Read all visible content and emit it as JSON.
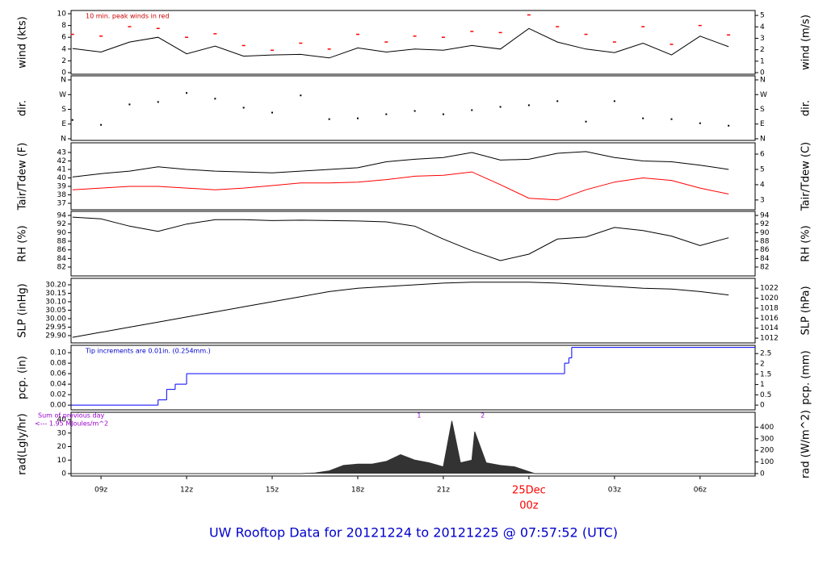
{
  "title": "UW Rooftop Data for 20121224  to  20121225 @ 07:57:52  (UTC)",
  "chart_data": [
    {
      "type": "line",
      "ylabel": "wind (kts)",
      "y2label": "wind (m/s)",
      "annotation": "10 min. peak winds in red",
      "annotation_color": "#cc0000",
      "xlim": [
        7.95,
        31.93
      ],
      "ylim": [
        -0.27,
        10.55
      ],
      "yticks": [
        0,
        2,
        4,
        6,
        8,
        10
      ],
      "y2lim": [
        -0.14,
        5.43
      ],
      "y2ticks": [
        0,
        1,
        2,
        3,
        4,
        5
      ],
      "x": [
        8,
        9,
        10,
        11,
        12,
        13,
        14,
        15,
        16,
        17,
        18,
        19,
        20,
        21,
        22,
        23,
        24,
        25,
        26,
        27,
        28,
        29,
        30,
        31
      ],
      "series": [
        {
          "name": "wind",
          "color": "#000000",
          "values": [
            4.1,
            3.5,
            5.2,
            6.0,
            3.2,
            4.5,
            2.8,
            3.0,
            3.1,
            2.5,
            4.2,
            3.5,
            4.0,
            3.8,
            4.6,
            4.0,
            7.5,
            5.2,
            4.0,
            3.4,
            5.0,
            3.0,
            6.2,
            4.4
          ]
        },
        {
          "name": "peak",
          "color": "#ff0000",
          "style": "dash",
          "values": [
            6.5,
            6.2,
            7.8,
            7.5,
            6.0,
            6.6,
            4.6,
            3.8,
            5.0,
            4.0,
            6.5,
            5.2,
            6.2,
            6.0,
            7.0,
            6.8,
            9.8,
            7.8,
            6.5,
            5.2,
            7.8,
            4.8,
            8.0,
            6.4
          ]
        }
      ]
    },
    {
      "type": "scatter",
      "ylabel": "dir.",
      "y2label": "dir.",
      "xlim": [
        7.95,
        31.93
      ],
      "ylim": [
        -9.9,
        384.7
      ],
      "yticks": [
        {
          "value": 0,
          "label": "N"
        },
        {
          "value": 90,
          "label": "E"
        },
        {
          "value": 180,
          "label": "S"
        },
        {
          "value": 270,
          "label": "W"
        },
        {
          "value": 360,
          "label": "N"
        }
      ],
      "y2lim": [
        -9.9,
        384.7
      ],
      "y2ticks": [
        {
          "value": 0,
          "label": "N"
        },
        {
          "value": 90,
          "label": "E"
        },
        {
          "value": 180,
          "label": "S"
        },
        {
          "value": 270,
          "label": "W"
        },
        {
          "value": 360,
          "label": "N"
        }
      ],
      "x": [
        8,
        9,
        10,
        11,
        12,
        13,
        14,
        15,
        16,
        17,
        18,
        19,
        20,
        21,
        22,
        23,
        24,
        25,
        26,
        27,
        28,
        29,
        30,
        31
      ],
      "series": [
        {
          "name": "dir",
          "color": "#000000",
          "values": [
            115,
            85,
            210,
            225,
            280,
            245,
            190,
            160,
            265,
            120,
            125,
            150,
            170,
            150,
            175,
            195,
            205,
            230,
            105,
            230,
            125,
            120,
            95,
            80
          ]
        }
      ]
    },
    {
      "type": "line",
      "ylabel": "Tair/Tdew (F)",
      "y2label": "Tair/Tdew (C)",
      "xlim": [
        7.95,
        31.93
      ],
      "ylim": [
        36.24,
        44.14
      ],
      "yticks": [
        37,
        38,
        39,
        40,
        41,
        42,
        43
      ],
      "y2lim": [
        2.36,
        6.74
      ],
      "y2ticks": [
        3,
        4,
        5,
        6
      ],
      "x": [
        8,
        9,
        10,
        11,
        12,
        13,
        14,
        15,
        16,
        17,
        18,
        19,
        20,
        21,
        22,
        23,
        24,
        25,
        26,
        27,
        28,
        29,
        30,
        31
      ],
      "series": [
        {
          "name": "Tair",
          "color": "#000000",
          "values": [
            40.1,
            40.5,
            40.8,
            41.3,
            41.0,
            40.8,
            40.7,
            40.6,
            40.8,
            41.0,
            41.2,
            41.9,
            42.2,
            42.4,
            43.0,
            42.1,
            42.2,
            42.9,
            43.1,
            42.4,
            42.0,
            41.9,
            41.5,
            41.0
          ]
        },
        {
          "name": "Tdew",
          "color": "#ff0000",
          "values": [
            38.6,
            38.8,
            39.0,
            39.0,
            38.8,
            38.6,
            38.8,
            39.1,
            39.4,
            39.4,
            39.5,
            39.8,
            40.2,
            40.3,
            40.7,
            39.2,
            37.6,
            37.4,
            38.6,
            39.5,
            40.0,
            39.7,
            38.8,
            38.1
          ]
        }
      ]
    },
    {
      "type": "line",
      "ylabel": "RH (%)",
      "y2label": "RH (%)",
      "xlim": [
        7.95,
        31.93
      ],
      "ylim": [
        79.94,
        94.94
      ],
      "yticks": [
        82,
        84,
        86,
        88,
        90,
        92,
        94
      ],
      "y2lim": [
        79.94,
        94.94
      ],
      "y2ticks": [
        82,
        84,
        86,
        88,
        90,
        92,
        94
      ],
      "x": [
        8,
        9,
        10,
        11,
        12,
        13,
        14,
        15,
        16,
        17,
        18,
        19,
        20,
        21,
        22,
        23,
        24,
        25,
        26,
        27,
        28,
        29,
        30,
        31
      ],
      "series": [
        {
          "name": "RH",
          "color": "#000000",
          "values": [
            93.6,
            93.2,
            91.5,
            90.3,
            92.0,
            93.0,
            93.0,
            92.8,
            92.9,
            92.8,
            92.7,
            92.5,
            91.5,
            88.5,
            85.8,
            83.5,
            85.0,
            88.5,
            89.0,
            91.2,
            90.5,
            89.2,
            87.0,
            88.8
          ]
        }
      ]
    },
    {
      "type": "line",
      "ylabel": "SLP (inHg)",
      "y2label": "SLP (hPa)",
      "xlim": [
        7.95,
        31.93
      ],
      "ylim": [
        29.857,
        30.238
      ],
      "yticks": [
        {
          "value": 29.9,
          "label": "29.90"
        },
        29.95,
        {
          "value": 30,
          "label": "30.00"
        },
        30.05,
        {
          "value": 30.1,
          "label": "30.10"
        },
        30.15,
        {
          "value": 30.2,
          "label": "30.20"
        }
      ],
      "y2lim": [
        1011.05,
        1023.96
      ],
      "y2ticks": [
        1012,
        1014,
        1016,
        1018,
        1020,
        1022
      ],
      "x": [
        8,
        9,
        10,
        11,
        12,
        13,
        14,
        15,
        16,
        17,
        18,
        19,
        20,
        21,
        22,
        23,
        24,
        25,
        26,
        27,
        28,
        29,
        30,
        31
      ],
      "series": [
        {
          "name": "SLP",
          "color": "#000000",
          "values": [
            29.89,
            29.92,
            29.95,
            29.98,
            30.01,
            30.04,
            30.07,
            30.1,
            30.13,
            30.16,
            30.18,
            30.19,
            30.2,
            30.21,
            30.215,
            30.215,
            30.215,
            30.21,
            30.2,
            30.19,
            30.18,
            30.175,
            30.16,
            30.14
          ]
        }
      ]
    },
    {
      "type": "step",
      "ylabel": "pcp. (in)",
      "y2label": "pcp. (mm)",
      "annotation": "Tip increments are 0.01in. (0.254mm.)",
      "annotation_color": "#0000cc",
      "xlim": [
        7.95,
        31.93
      ],
      "ylim": [
        -0.009,
        0.114
      ],
      "yticks": [
        {
          "value": 0,
          "label": "0.00"
        },
        {
          "value": 0.02,
          "label": "0.02"
        },
        {
          "value": 0.04,
          "label": "0.04"
        },
        {
          "value": 0.06,
          "label": "0.06"
        },
        {
          "value": 0.08,
          "label": "0.08"
        },
        {
          "value": 0.1,
          "label": "0.10"
        }
      ],
      "y2lim": [
        -0.23,
        2.9
      ],
      "y2ticks": [
        0,
        0.5,
        1,
        1.5,
        2,
        2.5
      ],
      "x": [
        7.95,
        11.0,
        11.3,
        11.6,
        12.0,
        25.25,
        25.4,
        25.5,
        31.93
      ],
      "series": [
        {
          "name": "pcp",
          "color": "#0000ff",
          "values": [
            0,
            0.01,
            0.03,
            0.04,
            0.06,
            0.08,
            0.09,
            0.11,
            0.11
          ]
        }
      ]
    },
    {
      "type": "area",
      "ylabel": "rad(Lgly/hr)",
      "y2label": "rad (W/m^2)",
      "annotations": [
        "Sum of previous day",
        "<--- 1.95 MJoules/m^2"
      ],
      "annotation_color": "#9900cc",
      "markers": [
        {
          "x": 20.15,
          "label": "1"
        },
        {
          "x": 22.38,
          "label": "2"
        }
      ],
      "xlim": [
        7.95,
        31.93
      ],
      "ylim": [
        -1.8,
        45.4
      ],
      "yticks": [
        0,
        10,
        20,
        30,
        40
      ],
      "y2lim": [
        -21,
        528
      ],
      "y2ticks": [
        0,
        100,
        200,
        300,
        400
      ],
      "xticks": [
        {
          "value": 9,
          "label": "09z"
        },
        {
          "value": 12,
          "label": "12z"
        },
        {
          "value": 15,
          "label": "15z"
        },
        {
          "value": 18,
          "label": "18z"
        },
        {
          "value": 21,
          "label": "21z"
        },
        {
          "value": 24,
          "label": "00z",
          "color": "#ff0000"
        },
        {
          "value": 27,
          "label": "03z"
        },
        {
          "value": 30,
          "label": "06z"
        }
      ],
      "date_tick": {
        "value": 24,
        "label": "25Dec",
        "color": "#ff0000"
      },
      "x": [
        7.95,
        16,
        16.5,
        17,
        17.5,
        18,
        18.5,
        19,
        19.5,
        20,
        20.5,
        21,
        21.3,
        21.6,
        22,
        22.1,
        22.5,
        23,
        23.5,
        24.2,
        31.93
      ],
      "series": [
        {
          "name": "rad",
          "color": "#333333",
          "values": [
            0,
            0,
            0.5,
            2,
            6,
            7,
            7,
            9,
            14,
            10,
            8,
            5,
            39,
            8,
            10,
            31,
            8,
            6,
            5,
            0,
            0
          ]
        }
      ]
    }
  ]
}
